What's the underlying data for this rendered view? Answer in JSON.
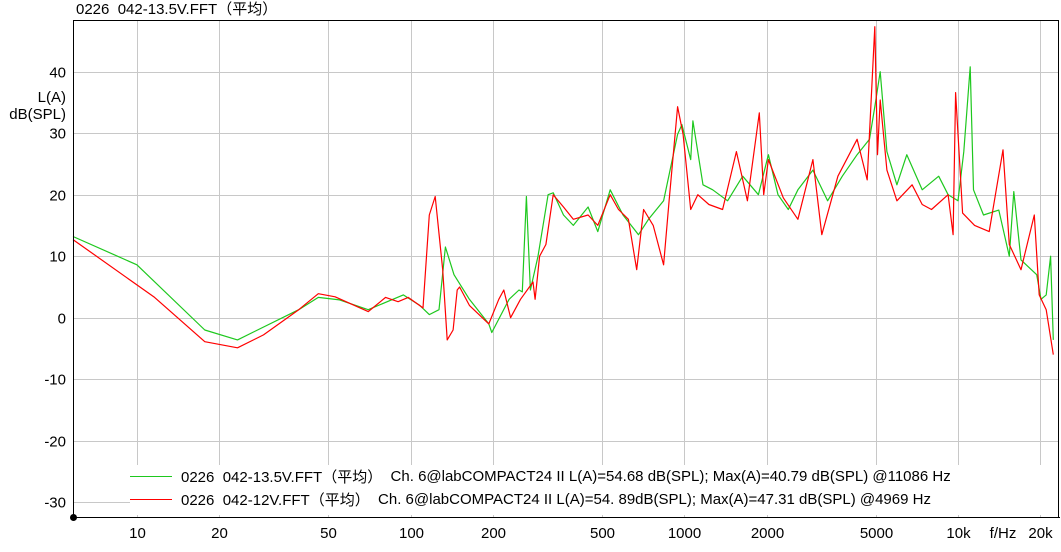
{
  "title": "0226  042-13.5V.FFT（平均）",
  "chart_data": {
    "type": "line",
    "title": "0226  042-13.5V.FFT（平均）",
    "ylabel": [
      "L(A)",
      "dB(SPL)"
    ],
    "xlabel": "f/Hz",
    "x_scale": "log",
    "xlim": [
      5.84,
      23200
    ],
    "ylim": [
      -32.4,
      48.4
    ],
    "grid": true,
    "legend_position": "bottom",
    "x_ticks": [
      10,
      20,
      50,
      100,
      200,
      500,
      1000,
      2000,
      5000,
      10000,
      20000
    ],
    "x_tick_labels": [
      "10",
      "20",
      "50",
      "100",
      "200",
      "500",
      "1000",
      "2000",
      "5000",
      "10k",
      "20k"
    ],
    "y_ticks": [
      40,
      30,
      20,
      10,
      0,
      -10,
      -20,
      -30
    ],
    "y_tick_labels": [
      "40",
      "30",
      "20",
      "10",
      "0",
      "-10",
      "-20",
      "-30"
    ],
    "series": [
      {
        "name": "0226  042-13.5V.FFT（平均）  Ch. 6@labCOMPACT24 II L(A)=54.68 dB(SPL); Max(A)=40.79 dB(SPL) @11086 Hz",
        "color": "#1ec81e",
        "x": [
          5.84,
          10,
          17.7,
          23.3,
          39,
          46,
          55,
          70,
          94,
          108,
          117,
          127,
          134,
          144,
          164,
          193,
          198,
          229,
          249,
          256,
          265,
          269,
          274,
          292,
          318,
          332,
          362,
          393,
          445,
          483,
          536,
          597,
          680,
          740,
          840,
          945,
          980,
          1055,
          1075,
          1170,
          1270,
          1440,
          1635,
          1865,
          2030,
          2200,
          2400,
          2600,
          2950,
          3340,
          3780,
          4280,
          4750,
          4980,
          5200,
          5500,
          5980,
          6500,
          7400,
          8500,
          9200,
          10000,
          10500,
          11086,
          11400,
          12400,
          14100,
          15400,
          16000,
          17000,
          19400,
          20100,
          21000,
          21800,
          22300
        ],
        "y": [
          13.2,
          8.6,
          -2,
          -3.6,
          1.3,
          3.3,
          2.9,
          1.3,
          3.7,
          2,
          0.5,
          1.3,
          11.5,
          7,
          3,
          -1,
          -2.4,
          3,
          4.5,
          4.2,
          19.7,
          12.7,
          4.5,
          10,
          20,
          20.3,
          16.7,
          15,
          18,
          14,
          20.8,
          16.7,
          13.5,
          16,
          19,
          29.8,
          31.4,
          25.7,
          32,
          21.6,
          20.8,
          19,
          23,
          20,
          26.5,
          20,
          17.6,
          20.8,
          24,
          19,
          23,
          26.5,
          29,
          34.6,
          40,
          27,
          21.6,
          26.5,
          20.8,
          23,
          20,
          19,
          27,
          40.79,
          20.8,
          16.7,
          17.5,
          10,
          20.5,
          9.4,
          7,
          3,
          3.7,
          10,
          -3.6
        ]
      },
      {
        "name": "0226  042-12V.FFT（平均）  Ch. 6@labCOMPACT24 II L(A)=54. 89dB(SPL); Max(A)=47.31 dB(SPL) @4969 Hz",
        "color": "#ff0000",
        "x": [
          5.84,
          11.6,
          17.7,
          23.3,
          29,
          39,
          46,
          53,
          70,
          81,
          90,
          98,
          111,
          117,
          123,
          131,
          136,
          143,
          148,
          151,
          164,
          193,
          210,
          219,
          232,
          252,
          280,
          285,
          296,
          312,
          332,
          362,
          393,
          445,
          483,
          536,
          575,
          625,
          670,
          710,
          770,
          840,
          880,
          945,
          990,
          1055,
          1120,
          1230,
          1380,
          1550,
          1700,
          1880,
          1950,
          2030,
          2300,
          2600,
          2950,
          3180,
          3640,
          4280,
          4660,
          4969,
          5080,
          5200,
          5500,
          5980,
          6800,
          7400,
          8000,
          9200,
          9600,
          9800,
          10400,
          11500,
          13000,
          14600,
          15400,
          17000,
          19000,
          19800,
          21000,
          22300
        ],
        "y": [
          12.7,
          3.3,
          -3.9,
          -4.9,
          -2.8,
          1.3,
          3.9,
          3.4,
          1,
          3.3,
          2.6,
          3.3,
          1.6,
          16.7,
          19.7,
          7.8,
          -3.6,
          -2,
          4.5,
          5,
          2,
          -1,
          3,
          4.5,
          0,
          3,
          5.8,
          3,
          10,
          11.9,
          20,
          18,
          16,
          16.7,
          15,
          20,
          17.6,
          16,
          7.8,
          17.6,
          15,
          8.6,
          19,
          34.3,
          29.8,
          17.6,
          20,
          18.4,
          17.6,
          27,
          19,
          33.3,
          20,
          25.7,
          19.5,
          16,
          25.7,
          13.5,
          23,
          29,
          22.4,
          47.31,
          26.5,
          35.4,
          24,
          19,
          21.6,
          18.4,
          17.6,
          20,
          13.5,
          36.6,
          17,
          15,
          14,
          27.3,
          11.9,
          7.8,
          16.7,
          3.7,
          1.3,
          -6
        ]
      }
    ]
  },
  "legend": [
    {
      "file": "0226  042-13.5V.FFT（平均）",
      "info": "  Ch. 6@labCOMPACT24 II L(A)=54.68 dB(SPL); Max(A)=40.79 dB(SPL) @11086 Hz",
      "color": "#1ec81e"
    },
    {
      "file": "0226  042-12V.FFT（平均）",
      "info": "  Ch. 6@labCOMPACT24 II L(A)=54. 89dB(SPL); Max(A)=47.31 dB(SPL) @4969 Hz",
      "color": "#ff0000"
    }
  ]
}
